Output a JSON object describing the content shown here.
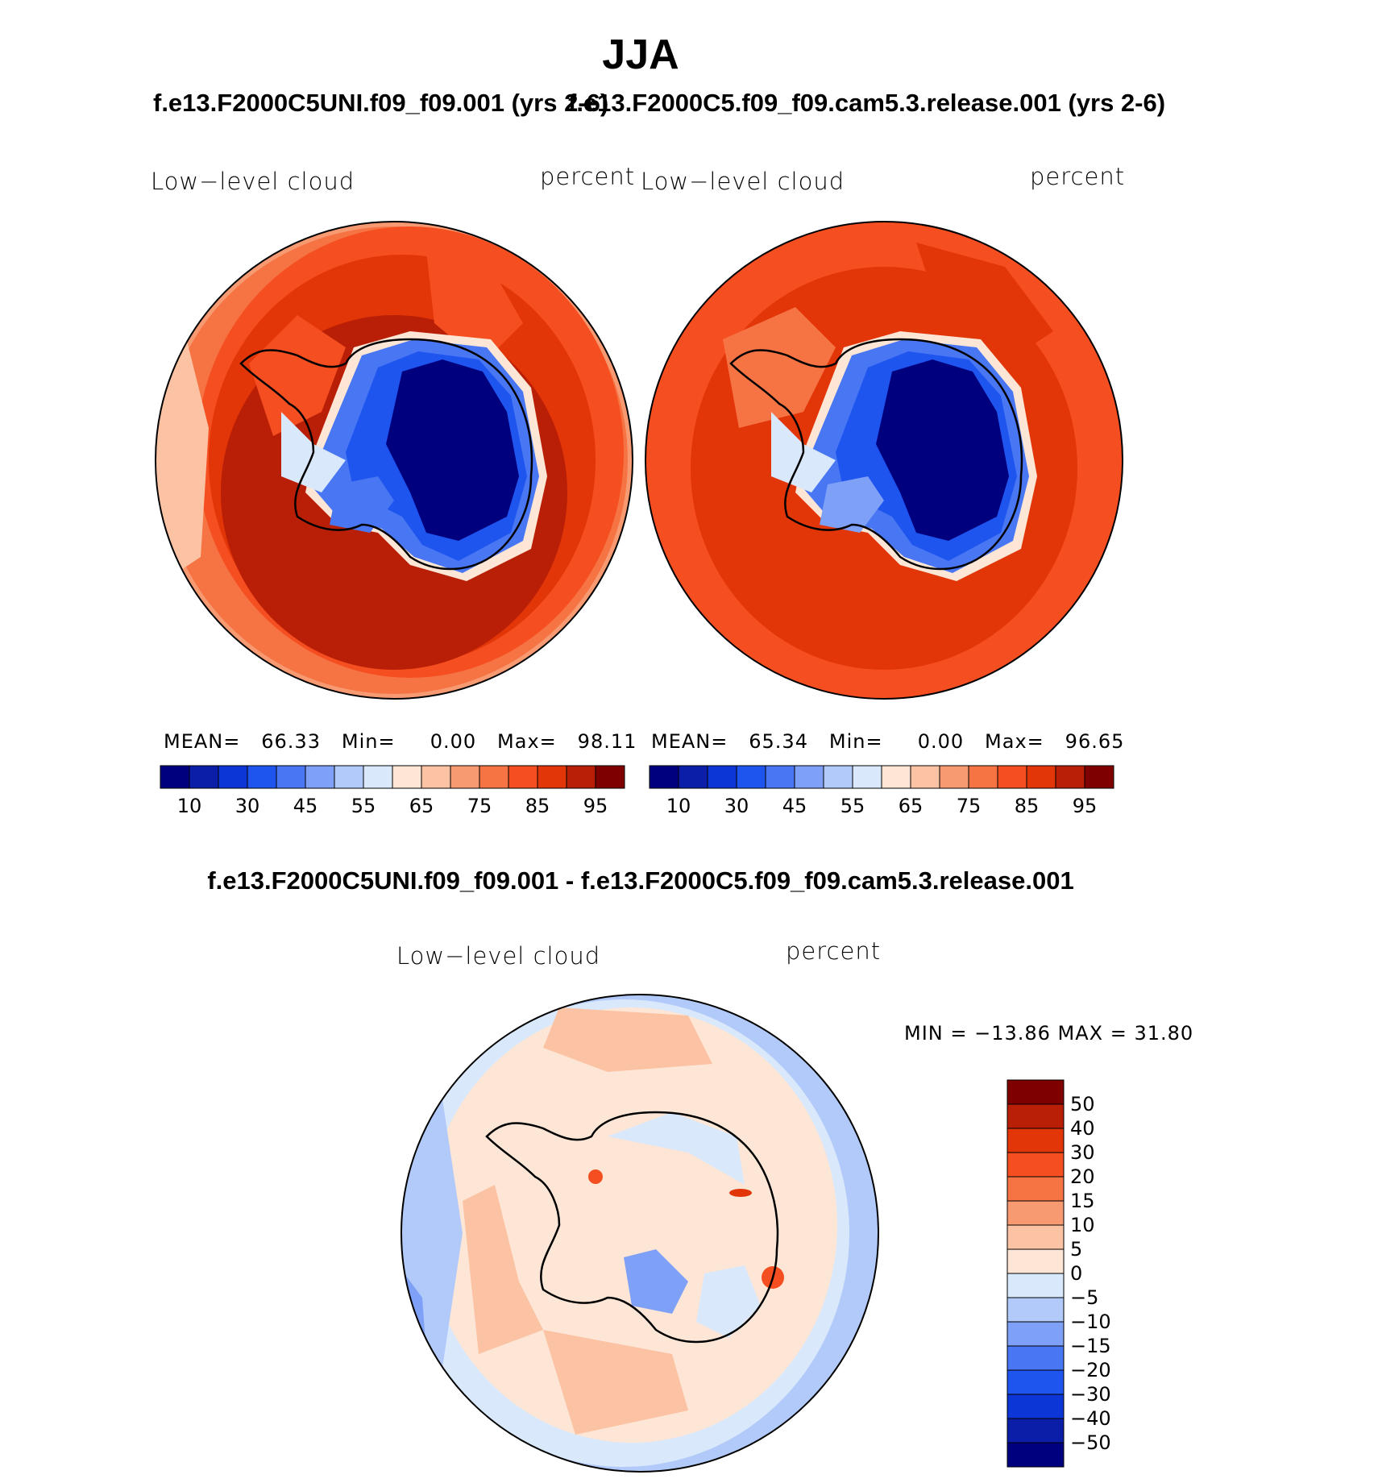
{
  "figure": {
    "title": "JJA",
    "left_panel": {
      "run": "f.e13.F2000C5UNI.f09_f09.001 (yrs 2-6)",
      "variable": "Low−level cloud",
      "units": "percent",
      "mean_label": "MEAN=",
      "mean": "66.33",
      "min_label": "Min=",
      "min": "0.00",
      "max_label": "Max=",
      "max": "98.11"
    },
    "right_panel": {
      "run": "f.e13.F2000C5.f09_f09.cam5.3.release.001 (yrs 2-6)",
      "variable": "Low−level cloud",
      "units": "percent",
      "mean_label": "MEAN=",
      "mean": "65.34",
      "min_label": "Min=",
      "min": "0.00",
      "max_label": "Max=",
      "max": "96.65"
    },
    "diff_panel": {
      "title": "f.e13.F2000C5UNI.f09_f09.001 - f.e13.F2000C5.f09_f09.cam5.3.release.001",
      "variable": "Low−level cloud",
      "units": "percent",
      "minmax": "MIN = −13.86 MAX =   31.80"
    },
    "mean_colorbar": {
      "colors": [
        "#00007f",
        "#0b1ea8",
        "#0c36d6",
        "#1f55ef",
        "#4977f3",
        "#7fa0f7",
        "#b2caf9",
        "#d9e8fb",
        "#fde6d6",
        "#fbc3a3",
        "#f89a71",
        "#f67444",
        "#f54e21",
        "#e23508",
        "#b91f06",
        "#7f0000"
      ],
      "tick_labels": [
        "10",
        "30",
        "45",
        "55",
        "65",
        "75",
        "85",
        "95"
      ]
    },
    "diff_colorbar": {
      "colors": [
        "#7f0000",
        "#b91f06",
        "#e23508",
        "#f54e21",
        "#f67444",
        "#f89a71",
        "#fbc3a3",
        "#fde6d6",
        "#d9e8fb",
        "#b2caf9",
        "#7fa0f7",
        "#4977f3",
        "#1f55ef",
        "#0c36d6",
        "#0b1ea8",
        "#00007f"
      ],
      "tick_labels": [
        "50",
        "40",
        "30",
        "20",
        "15",
        "10",
        "5",
        "0",
        "−5",
        "−10",
        "−15",
        "−20",
        "−30",
        "−40",
        "−50"
      ]
    }
  }
}
